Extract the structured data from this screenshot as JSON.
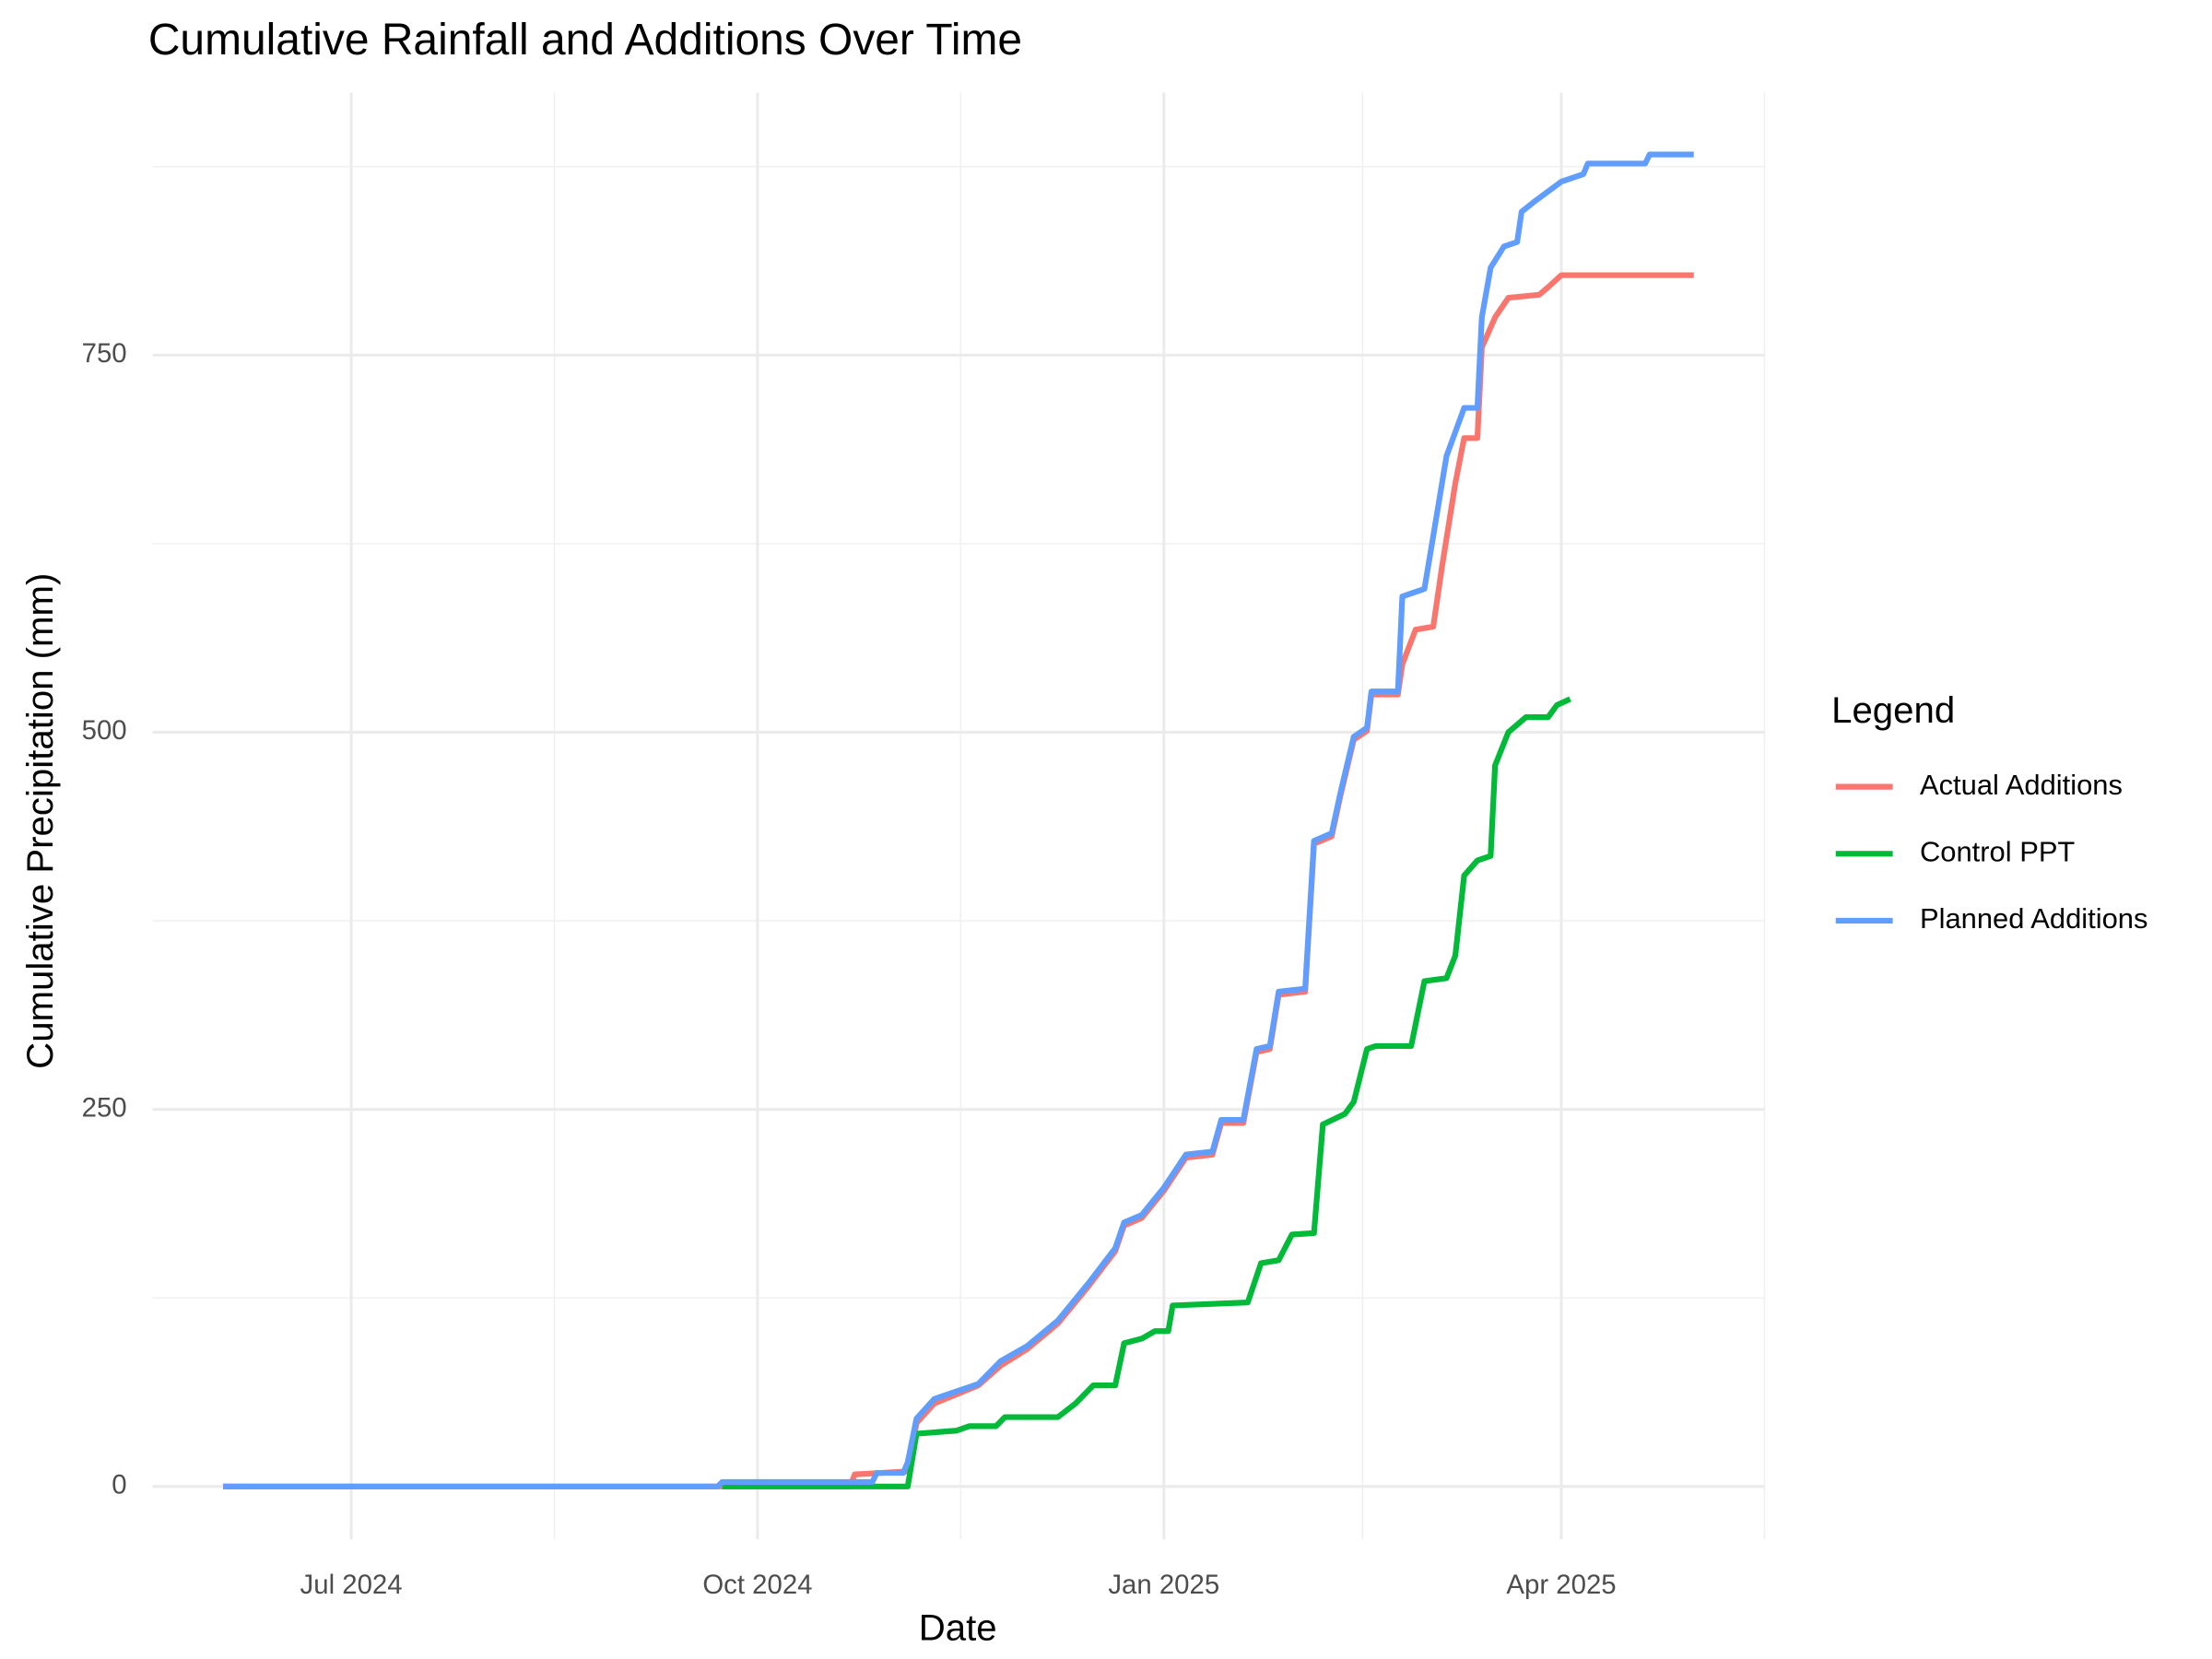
{
  "chart_data": {
    "type": "line",
    "title": "Cumulative Rainfall and Additions Over Time",
    "x_label": "Date",
    "y_label": "Cumulative Precipitation (mm)",
    "legend_title": "Legend",
    "legend_position": "right",
    "grid": true,
    "xlim": [
      "2024-05-17",
      "2025-05-17"
    ],
    "xticks": [
      {
        "value": "2024-07-01",
        "label": "Jul 2024"
      },
      {
        "value": "2024-10-01",
        "label": "Oct 2024"
      },
      {
        "value": "2025-01-01",
        "label": "Jan 2025"
      },
      {
        "value": "2025-04-01",
        "label": "Apr 2025"
      }
    ],
    "ylim": [
      -35,
      924
    ],
    "yticks": [
      0,
      250,
      500,
      750
    ],
    "series": [
      {
        "name": "Actual Additions",
        "color": "#f8766d",
        "x": [
          "2024-06-02",
          "2024-10-22",
          "2024-10-23",
          "2024-11-04",
          "2024-11-06",
          "2024-11-10",
          "2024-11-20",
          "2024-11-25",
          "2024-12-01",
          "2024-12-08",
          "2024-12-15",
          "2024-12-21",
          "2024-12-23",
          "2024-12-27",
          "2025-01-01",
          "2025-01-06",
          "2025-01-12",
          "2025-01-14",
          "2025-01-19",
          "2025-01-22",
          "2025-01-25",
          "2025-01-27",
          "2025-02-02",
          "2025-02-04",
          "2025-02-08",
          "2025-02-10",
          "2025-02-13",
          "2025-02-16",
          "2025-02-17",
          "2025-02-23",
          "2025-02-24",
          "2025-02-27",
          "2025-03-03",
          "2025-03-05",
          "2025-03-08",
          "2025-03-10",
          "2025-03-13",
          "2025-03-14",
          "2025-03-17",
          "2025-03-20",
          "2025-03-27",
          "2025-03-29",
          "2025-04-01",
          "2025-05-01"
        ],
        "values": [
          0,
          0,
          8,
          10,
          42,
          55,
          67,
          80,
          91,
          108,
          133,
          156,
          173,
          178,
          196,
          218,
          220,
          241,
          241,
          288,
          290,
          326,
          328,
          426,
          431,
          458,
          495,
          501,
          525,
          525,
          545,
          568,
          570,
          610,
          665,
          695,
          695,
          755,
          775,
          788,
          790,
          795,
          803,
          803
        ]
      },
      {
        "name": "Control PPT",
        "color": "#00ba38",
        "x": [
          "2024-09-23",
          "2024-11-04",
          "2024-11-06",
          "2024-11-15",
          "2024-11-18",
          "2024-11-24",
          "2024-11-26",
          "2024-12-08",
          "2024-12-12",
          "2024-12-16",
          "2024-12-21",
          "2024-12-23",
          "2024-12-27",
          "2024-12-30",
          "2025-01-02",
          "2025-01-03",
          "2025-01-20",
          "2025-01-23",
          "2025-01-27",
          "2025-01-30",
          "2025-02-04",
          "2025-02-06",
          "2025-02-11",
          "2025-02-13",
          "2025-02-16",
          "2025-02-18",
          "2025-02-26",
          "2025-03-01",
          "2025-03-06",
          "2025-03-08",
          "2025-03-10",
          "2025-03-13",
          "2025-03-16",
          "2025-03-17",
          "2025-03-20",
          "2025-03-24",
          "2025-03-29",
          "2025-03-31",
          "2025-04-03"
        ],
        "values": [
          0,
          0,
          35,
          37,
          40,
          40,
          46,
          46,
          55,
          67,
          67,
          95,
          98,
          103,
          103,
          120,
          122,
          148,
          150,
          167,
          168,
          240,
          247,
          255,
          290,
          292,
          292,
          335,
          337,
          352,
          405,
          415,
          418,
          478,
          500,
          510,
          510,
          518,
          522
        ]
      },
      {
        "name": "Planned Additions",
        "color": "#619cff",
        "x": [
          "2024-06-02",
          "2024-09-22",
          "2024-09-23",
          "2024-10-27",
          "2024-10-28",
          "2024-11-03",
          "2024-11-04",
          "2024-11-06",
          "2024-11-10",
          "2024-11-20",
          "2024-11-25",
          "2024-12-01",
          "2024-12-08",
          "2024-12-15",
          "2024-12-21",
          "2024-12-23",
          "2024-12-27",
          "2025-01-01",
          "2025-01-06",
          "2025-01-12",
          "2025-01-14",
          "2025-01-19",
          "2025-01-22",
          "2025-01-25",
          "2025-01-27",
          "2025-02-02",
          "2025-02-04",
          "2025-02-08",
          "2025-02-10",
          "2025-02-13",
          "2025-02-16",
          "2025-02-17",
          "2025-02-23",
          "2025-02-24",
          "2025-03-01",
          "2025-03-03",
          "2025-03-06",
          "2025-03-10",
          "2025-03-13",
          "2025-03-14",
          "2025-03-16",
          "2025-03-19",
          "2025-03-22",
          "2025-03-23",
          "2025-03-26",
          "2025-04-01",
          "2025-04-06",
          "2025-04-07",
          "2025-04-20",
          "2025-04-21",
          "2025-05-01"
        ],
        "values": [
          0,
          0,
          3,
          3,
          9,
          9,
          16,
          45,
          58,
          68,
          83,
          93,
          110,
          135,
          158,
          175,
          180,
          198,
          220,
          222,
          243,
          243,
          290,
          292,
          328,
          330,
          428,
          433,
          460,
          497,
          503,
          527,
          527,
          590,
          595,
          630,
          683,
          715,
          715,
          775,
          808,
          822,
          825,
          845,
          852,
          865,
          870,
          877,
          877,
          883,
          883
        ]
      }
    ]
  }
}
